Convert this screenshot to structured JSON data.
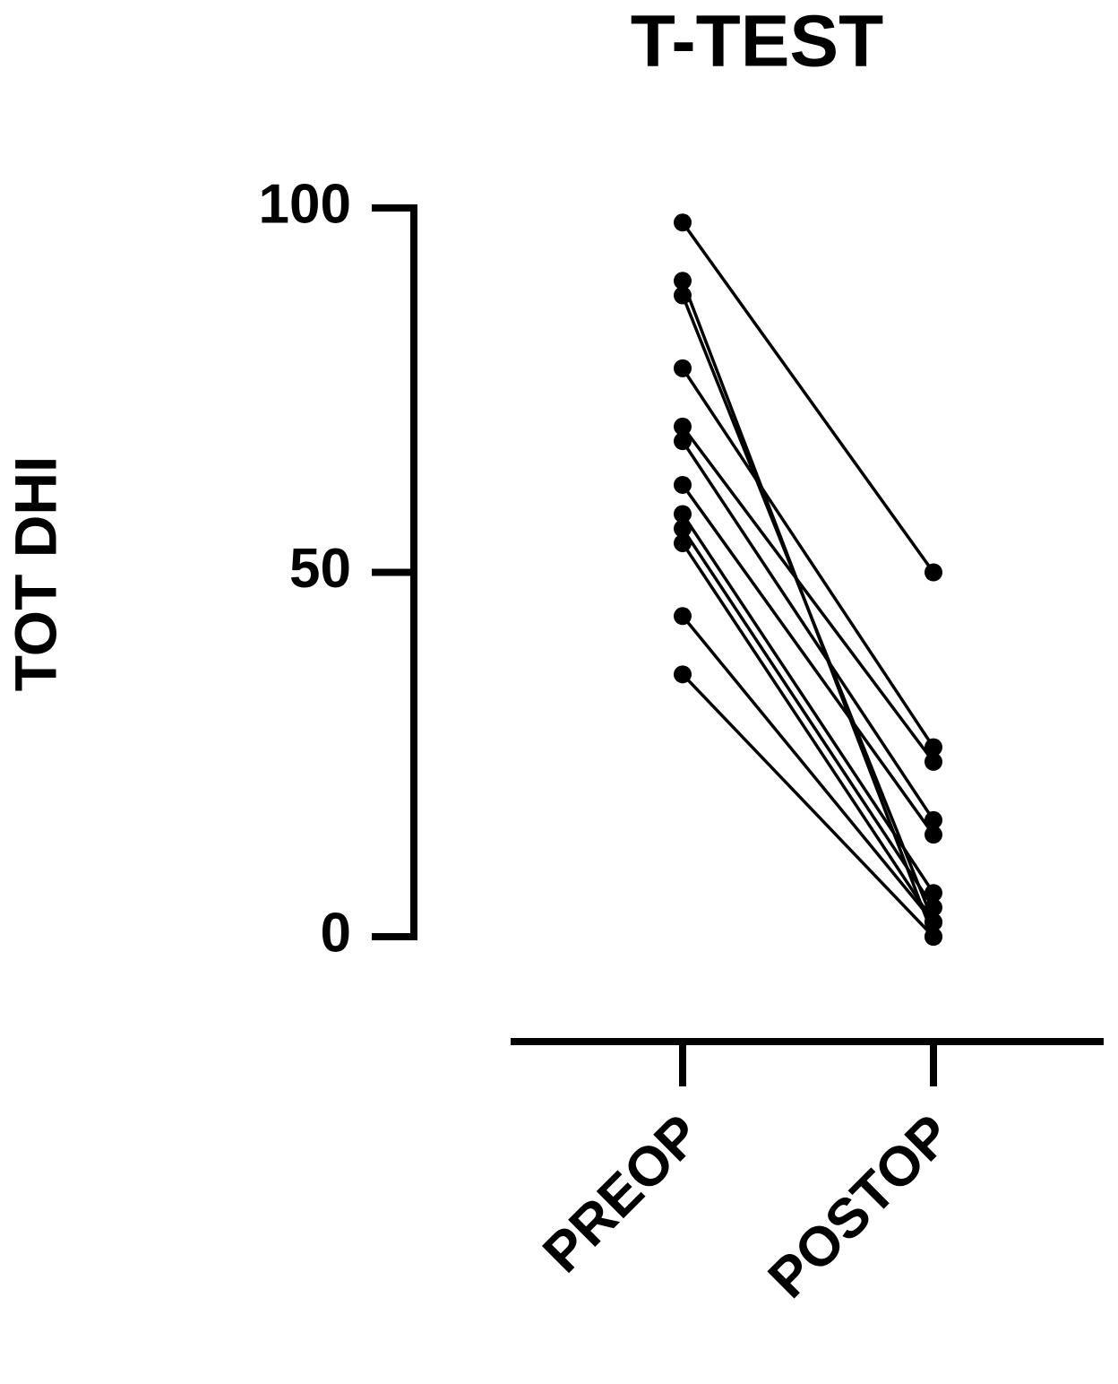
{
  "chart_data": {
    "type": "paired-line",
    "title": "T-TEST",
    "y_label": "TOT DHI",
    "categories": [
      "PREOP",
      "POSTOP"
    ],
    "color": "#000000",
    "series": [
      {
        "values": [
          98,
          50
        ]
      },
      {
        "values": [
          90,
          0
        ]
      },
      {
        "values": [
          88,
          2
        ]
      },
      {
        "values": [
          78,
          26
        ]
      },
      {
        "values": [
          70,
          24
        ]
      },
      {
        "values": [
          68,
          16
        ]
      },
      {
        "values": [
          62,
          14
        ]
      },
      {
        "values": [
          58,
          6
        ]
      },
      {
        "values": [
          56,
          4
        ]
      },
      {
        "values": [
          54,
          2
        ]
      },
      {
        "values": [
          44,
          2
        ]
      },
      {
        "values": [
          36,
          0
        ]
      }
    ],
    "ylim": [
      0,
      100
    ],
    "yticks": [
      0,
      50,
      100
    ]
  }
}
